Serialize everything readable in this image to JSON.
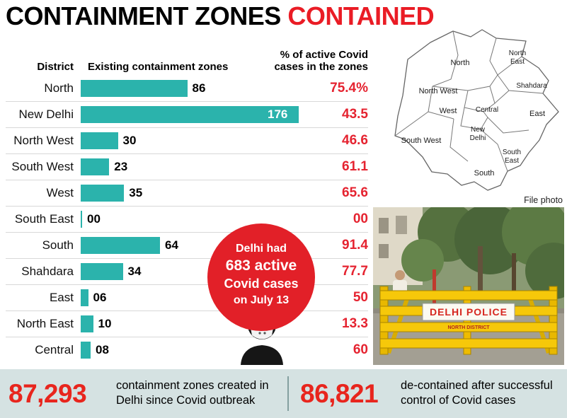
{
  "title": {
    "black": "CONTAINMENT ZONES ",
    "red": "CONTAINED"
  },
  "colors": {
    "accent_red": "#ea1c25",
    "bar_teal": "#2bb3ac",
    "footer_bg": "#d5e2e2",
    "pct_red": "#e52330"
  },
  "chart": {
    "col_district": "District",
    "col_zones": "Existing containment zones",
    "col_pct": "% of active Covid cases in the zones",
    "rows": [
      {
        "district": "North",
        "zones": "86",
        "value": 86,
        "pct": "75.4%"
      },
      {
        "district": "New Delhi",
        "zones": "176",
        "value": 176,
        "pct": "43.5"
      },
      {
        "district": "North West",
        "zones": "30",
        "value": 30,
        "pct": "46.6"
      },
      {
        "district": "South West",
        "zones": "23",
        "value": 23,
        "pct": "61.1"
      },
      {
        "district": "West",
        "zones": "35",
        "value": 35,
        "pct": "65.6"
      },
      {
        "district": "South East",
        "zones": "00",
        "value": 0,
        "pct": "00"
      },
      {
        "district": "South",
        "zones": "64",
        "value": 64,
        "pct": "91.4"
      },
      {
        "district": "Shahdara",
        "zones": "34",
        "value": 34,
        "pct": "77.7"
      },
      {
        "district": "East",
        "zones": "06",
        "value": 6,
        "pct": "50"
      },
      {
        "district": "North East",
        "zones": "10",
        "value": 10,
        "pct": "13.3"
      },
      {
        "district": "Central",
        "zones": "08",
        "value": 8,
        "pct": "60"
      }
    ]
  },
  "callout": {
    "line1": "Delhi had",
    "line2": "683 active",
    "line3": "Covid cases",
    "line4": "on July 13"
  },
  "map": {
    "labels": {
      "north": "North",
      "north_east_1": "North",
      "north_east_2": "East",
      "shahdara": "Shahdara",
      "north_west": "North West",
      "west": "West",
      "central": "Central",
      "east": "East",
      "new_delhi_1": "New",
      "new_delhi_2": "Delhi",
      "south_west": "South West",
      "south_east_1": "South",
      "south_east_2": "East",
      "south": "South"
    }
  },
  "photo": {
    "caption": "File photo",
    "sign": "DELHI POLICE",
    "sign_sub": "NORTH DISTRICT"
  },
  "footer": {
    "stat1": {
      "number": "87,293",
      "label": "containment zones created in Delhi since Covid outbreak"
    },
    "stat2": {
      "number": "86,821",
      "label": "de-contained after successful control of Covid cases"
    }
  },
  "chart_data": {
    "type": "bar",
    "orientation": "horizontal",
    "title": "CONTAINMENT ZONES CONTAINED",
    "categories": [
      "North",
      "New Delhi",
      "North West",
      "South West",
      "West",
      "South East",
      "South",
      "Shahdara",
      "East",
      "North East",
      "Central"
    ],
    "series": [
      {
        "name": "Existing containment zones",
        "values": [
          86,
          176,
          30,
          23,
          35,
          0,
          64,
          34,
          6,
          10,
          8
        ]
      },
      {
        "name": "% of active Covid cases in the zones",
        "values": [
          75.4,
          43.5,
          46.6,
          61.1,
          65.6,
          0,
          91.4,
          77.7,
          50,
          13.3,
          60
        ]
      }
    ],
    "annotation": "Delhi had 683 active Covid cases on July 13",
    "footnotes": [
      "87,293 containment zones created in Delhi since Covid outbreak",
      "86,821 de-contained after successful control of Covid cases"
    ],
    "legend_position": "none",
    "grid": false
  }
}
